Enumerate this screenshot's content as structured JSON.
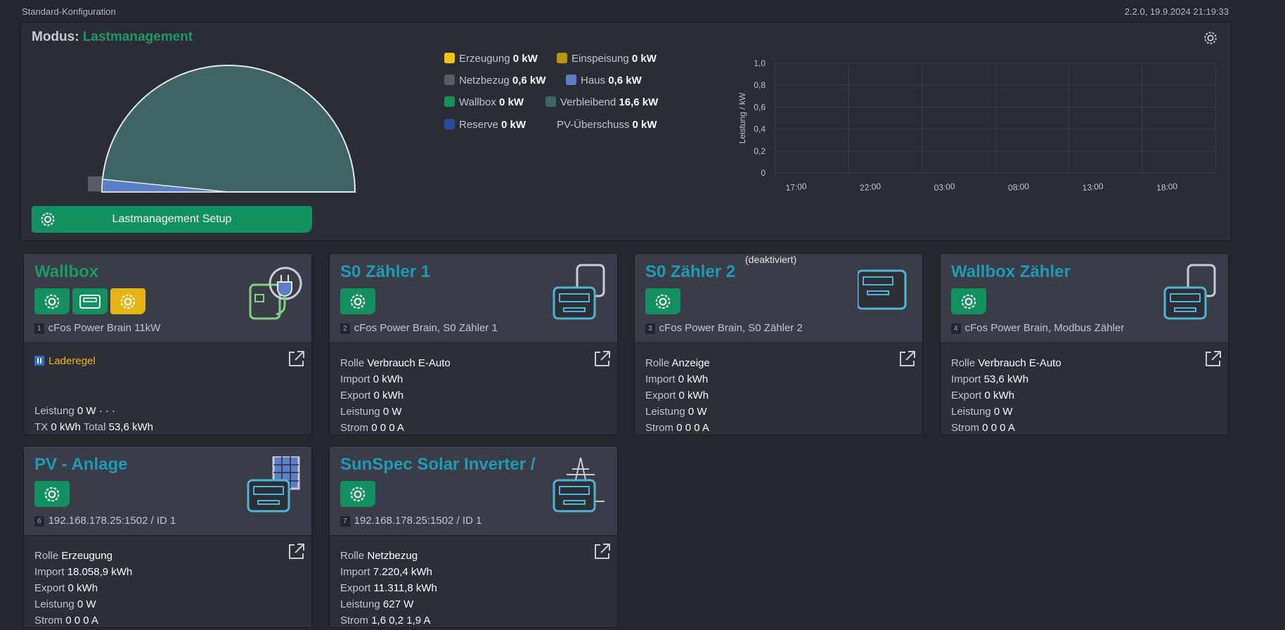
{
  "header": {
    "config": "Standard-Konfiguration",
    "version": "2.2.0, 19.9.2024 21:19:33"
  },
  "mode": {
    "label": "Modus:",
    "value": "Lastmanagement",
    "button": "Lastmanagement Setup",
    "legend": [
      {
        "name": "Erzeugung",
        "value": "0 kW",
        "color": "#f1c40f"
      },
      {
        "name": "Einspeisung",
        "value": "0 kW",
        "color": "#b8960f"
      },
      {
        "name": "Netzbezug",
        "value": "0,6 kW",
        "color": "#5a5d66"
      },
      {
        "name": "Haus",
        "value": "0,6 kW",
        "color": "#5b7fc7"
      },
      {
        "name": "Wallbox",
        "value": "0 kW",
        "color": "#13905f"
      },
      {
        "name": "Verbleibend",
        "value": "16,6 kW",
        "color": "#3f6466"
      },
      {
        "name": "Reserve",
        "value": "0 kW",
        "color": "#2a4aa0"
      },
      {
        "name": "PV-Überschuss",
        "value": "0 kW",
        "color": null
      }
    ]
  },
  "chart": {
    "ylabel": "Leistung / kW",
    "yticks": [
      "1,0",
      "0,8",
      "0,6",
      "0,4",
      "0,2",
      "0"
    ],
    "xticks": [
      "17:00",
      "22:00",
      "03:00",
      "08:00",
      "13:00",
      "18:00"
    ]
  },
  "cards": [
    {
      "title": "Wallbox",
      "id": "1",
      "device": "cFos Power Brain 11kW",
      "status": "Laderegel",
      "lines": [
        [
          "Leistung",
          "0 W · · ·"
        ],
        [
          "TX",
          "0 kWh",
          "Total",
          "53,6 kWh"
        ]
      ]
    },
    {
      "title": "S0 Zähler 1",
      "id": "2",
      "device": "cFos Power Brain, S0 Zähler 1",
      "lines": [
        [
          "Rolle",
          "Verbrauch E-Auto"
        ],
        [
          "Import",
          "0 kWh"
        ],
        [
          "Export",
          "0 kWh"
        ],
        [
          "Leistung",
          "0 W"
        ],
        [
          "Strom",
          "0 0 0 A"
        ]
      ]
    },
    {
      "title": "S0 Zähler 2",
      "note": "(deaktiviert)",
      "id": "3",
      "device": "cFos Power Brain, S0 Zähler 2",
      "lines": [
        [
          "Rolle",
          "Anzeige"
        ],
        [
          "Import",
          "0 kWh"
        ],
        [
          "Export",
          "0 kWh"
        ],
        [
          "Leistung",
          "0 W"
        ],
        [
          "Strom",
          "0 0 0 A"
        ]
      ]
    },
    {
      "title": "Wallbox Zähler",
      "id": "4",
      "device": "cFos Power Brain, Modbus Zähler",
      "lines": [
        [
          "Rolle",
          "Verbrauch E-Auto"
        ],
        [
          "Import",
          "53,6 kWh"
        ],
        [
          "Export",
          "0 kWh"
        ],
        [
          "Leistung",
          "0 W"
        ],
        [
          "Strom",
          "0 0 0 A"
        ]
      ]
    },
    {
      "title": "PV - Anlage",
      "id": "6",
      "device": "192.168.178.25:1502 / ID 1",
      "lines": [
        [
          "Rolle",
          "Erzeugung"
        ],
        [
          "Import",
          "18.058,9 kWh"
        ],
        [
          "Export",
          "0 kWh"
        ],
        [
          "Leistung",
          "0 W"
        ],
        [
          "Strom",
          "0 0 0 A"
        ]
      ]
    },
    {
      "title": "SunSpec Solar Inverter /",
      "id": "7",
      "device": "192.168.178.25:1502 / ID 1",
      "lines": [
        [
          "Rolle",
          "Netzbezug"
        ],
        [
          "Import",
          "7.220,4 kWh"
        ],
        [
          "Export",
          "11.311,8 kWh"
        ],
        [
          "Leistung",
          "627 W"
        ],
        [
          "Strom",
          "1,6 0,2 1,9 A"
        ]
      ]
    }
  ]
}
